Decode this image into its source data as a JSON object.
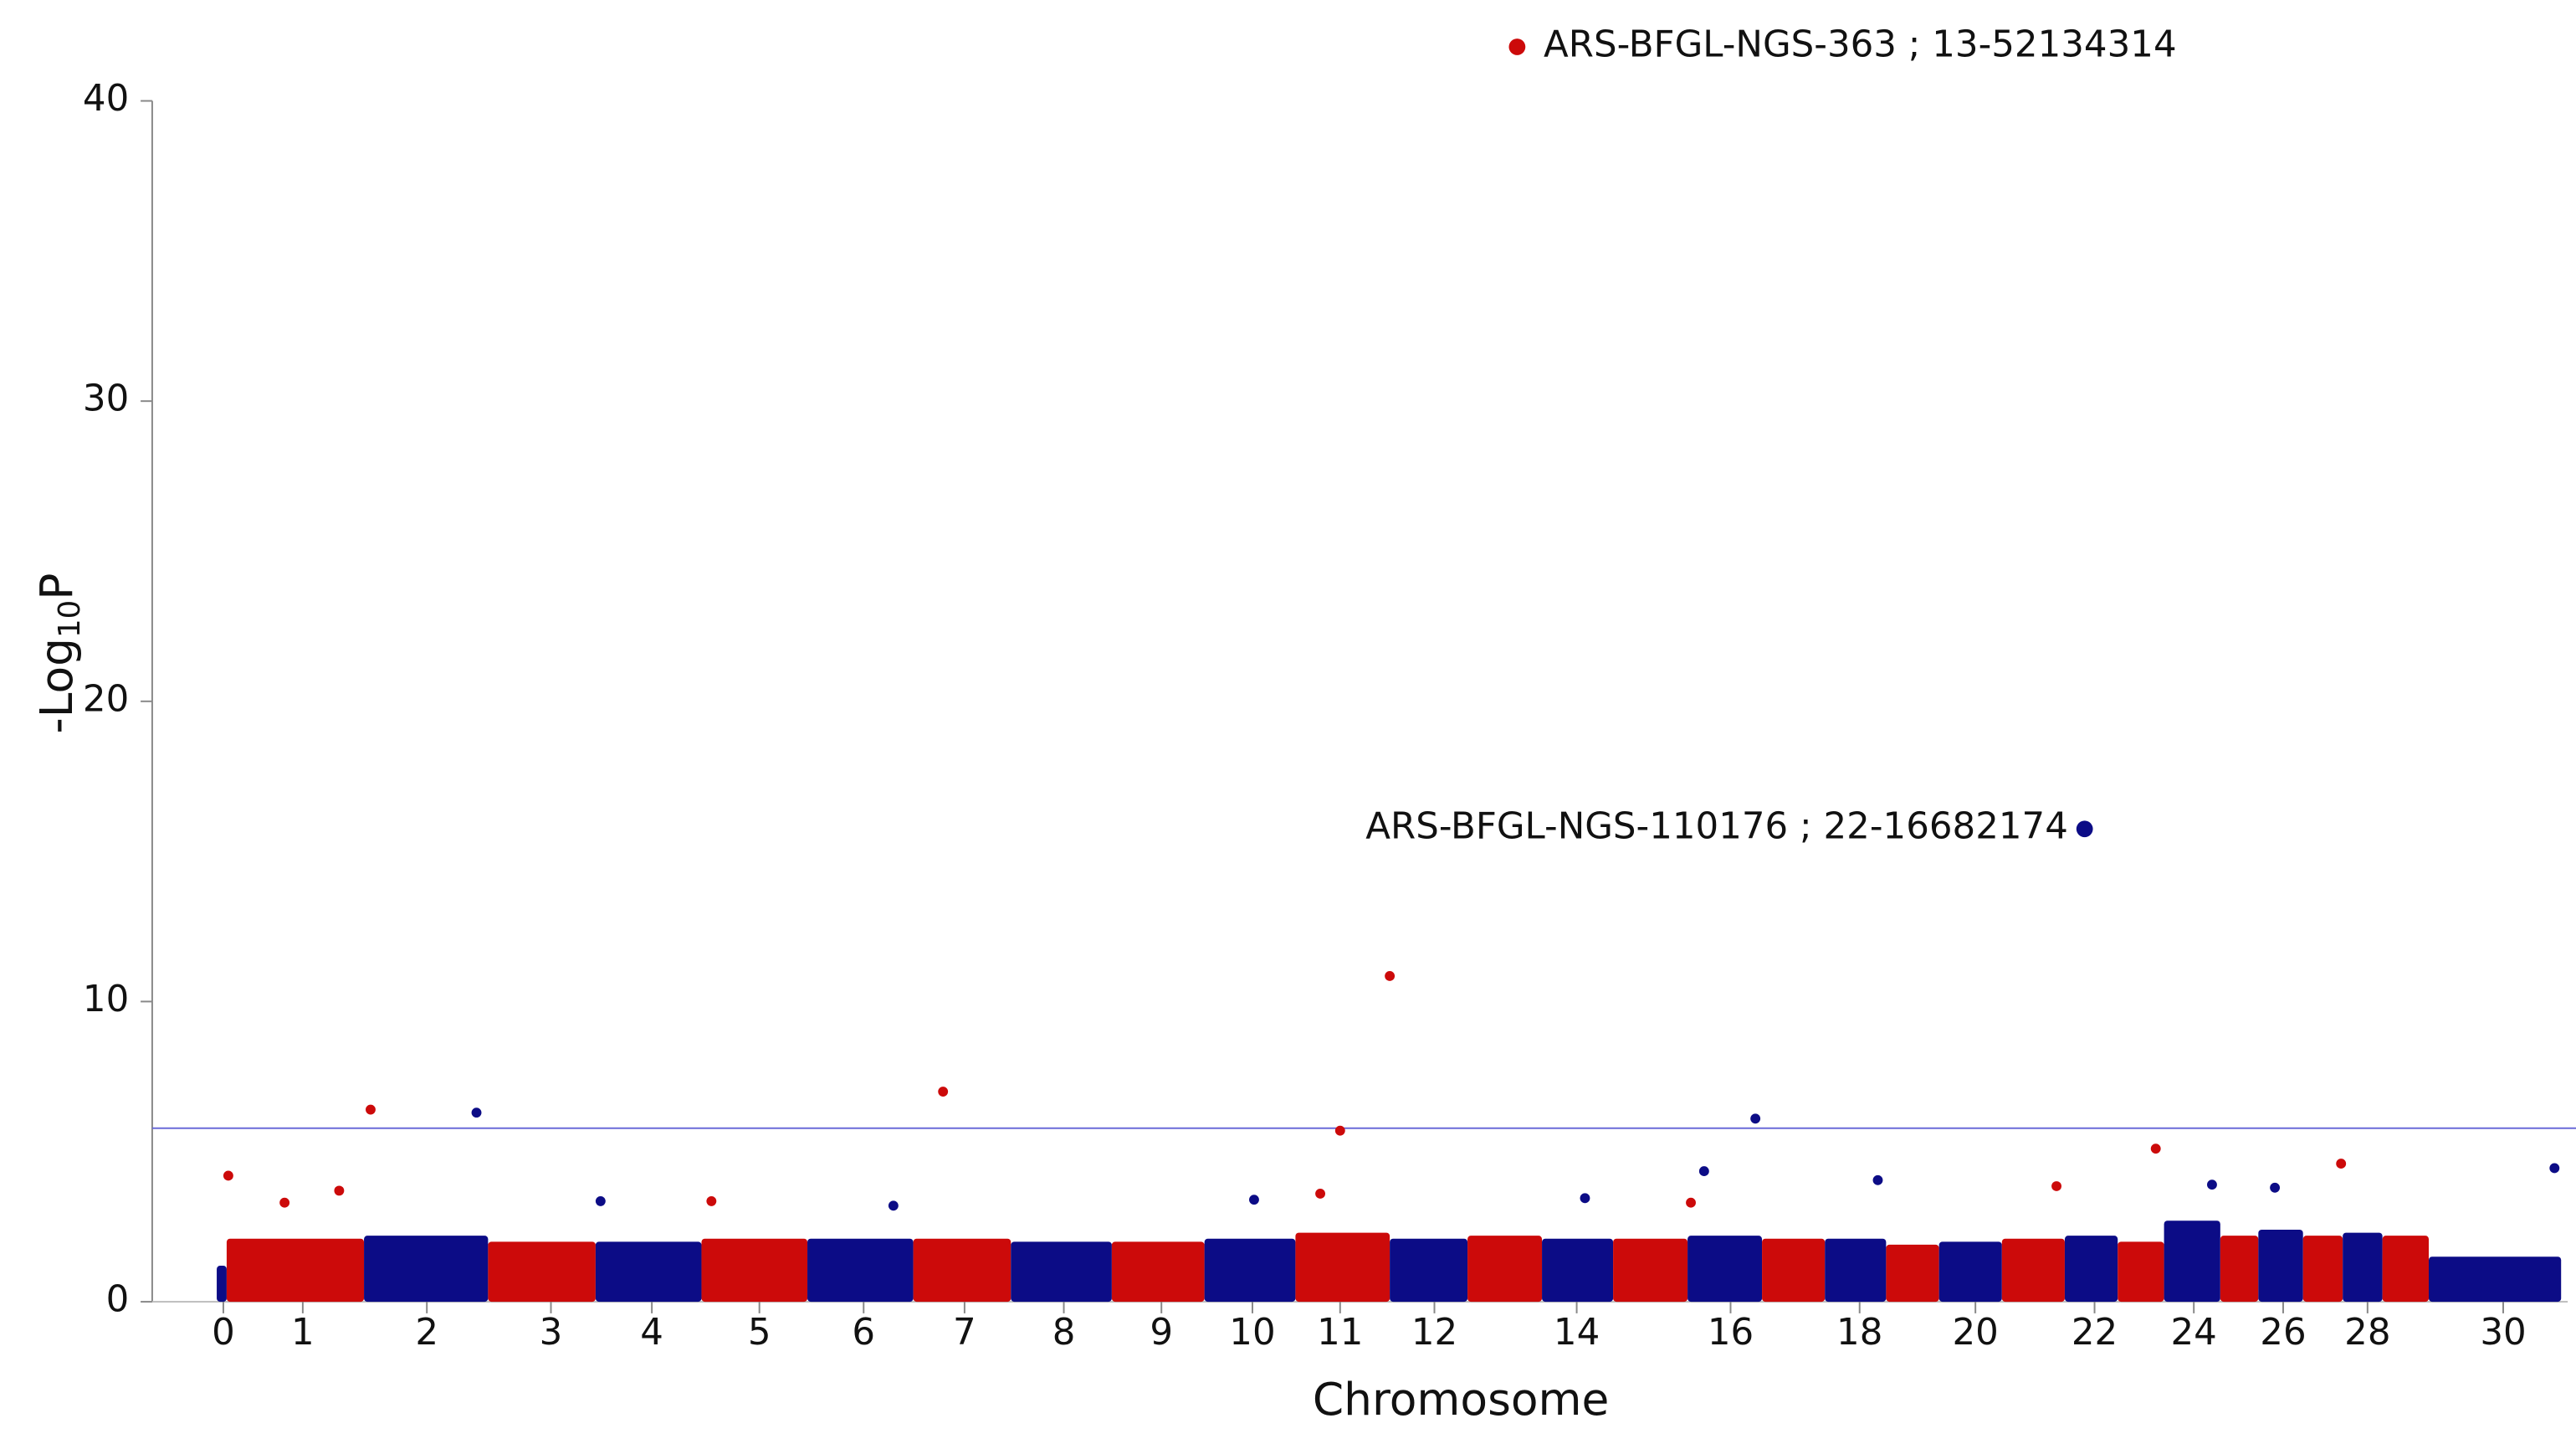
{
  "chart_data": {
    "type": "manhattan",
    "xlabel": "Chromosome",
    "ylabel": [
      "-Log",
      "10",
      "P"
    ],
    "xlim": [
      0,
      1460
    ],
    "ylim": [
      0,
      40
    ],
    "yticks": [
      0,
      10,
      20,
      30,
      40
    ],
    "xticks": [
      {
        "value": 43,
        "label": "0"
      },
      {
        "value": 91,
        "label": "1"
      },
      {
        "value": 166,
        "label": "2"
      },
      {
        "value": 241,
        "label": "3"
      },
      {
        "value": 302,
        "label": "4"
      },
      {
        "value": 367,
        "label": "5"
      },
      {
        "value": 430,
        "label": "6"
      },
      {
        "value": 491,
        "label": "7"
      },
      {
        "value": 551,
        "label": "8"
      },
      {
        "value": 610,
        "label": "9"
      },
      {
        "value": 665,
        "label": "10"
      },
      {
        "value": 718,
        "label": "11"
      },
      {
        "value": 775,
        "label": "12"
      },
      {
        "value": 861,
        "label": "14"
      },
      {
        "value": 954,
        "label": "16"
      },
      {
        "value": 1032,
        "label": "18"
      },
      {
        "value": 1102,
        "label": "20"
      },
      {
        "value": 1174,
        "label": "22"
      },
      {
        "value": 1234,
        "label": "24"
      },
      {
        "value": 1288,
        "label": "26"
      },
      {
        "value": 1339,
        "label": "28"
      },
      {
        "value": 1421,
        "label": "30"
      }
    ],
    "threshold": 5.78,
    "threshold_color": "#6a6ad8",
    "band_colors": [
      "#0c0c86",
      "#cc0a0a"
    ],
    "bands": {
      "starts": [
        39,
        45,
        128,
        203,
        268,
        332,
        396,
        460,
        519,
        580,
        636,
        691,
        748,
        795,
        840,
        883,
        928,
        973,
        1011,
        1048,
        1080,
        1118,
        1156,
        1188,
        1216,
        1250,
        1273,
        1300,
        1324,
        1348,
        1376
      ],
      "ends": [
        45,
        128,
        203,
        268,
        332,
        396,
        460,
        519,
        580,
        636,
        691,
        748,
        795,
        840,
        883,
        928,
        973,
        1011,
        1048,
        1080,
        1118,
        1156,
        1188,
        1216,
        1250,
        1273,
        1300,
        1324,
        1348,
        1376,
        1456
      ],
      "values": [
        1.2,
        2.1,
        2.2,
        2.0,
        2.0,
        2.1,
        2.1,
        2.1,
        2.0,
        2.0,
        2.1,
        2.3,
        2.1,
        2.2,
        2.1,
        2.1,
        2.2,
        2.1,
        2.1,
        1.9,
        2.0,
        2.1,
        2.2,
        2.0,
        2.7,
        2.2,
        2.4,
        2.2,
        2.3,
        2.2,
        1.5
      ]
    },
    "series": [
      {
        "color": "#cc0a0a",
        "x": [
          825,
          132,
          478,
          718,
          748,
          46,
          1211,
          1323,
          1151,
          113,
          80,
          338,
          706,
          930
        ],
        "values": [
          41.8,
          6.4,
          7.0,
          5.7,
          10.85,
          4.2,
          5.1,
          4.6,
          3.85,
          3.7,
          3.3,
          3.35,
          3.6,
          3.3
        ]
      },
      {
        "color": "#0c0c86",
        "x": [
          1168,
          196,
          969,
          1452,
          938,
          1043,
          1245,
          271,
          666,
          448,
          1283,
          866
        ],
        "values": [
          15.75,
          6.3,
          6.1,
          4.45,
          4.35,
          4.05,
          3.9,
          3.35,
          3.4,
          3.2,
          3.8,
          3.45
        ]
      }
    ],
    "annotations": [
      "ARS-BFGL-NGS-363 ; 13-52134314",
      "ARS-BFGL-NGS-110176 ; 22-16682174"
    ]
  }
}
